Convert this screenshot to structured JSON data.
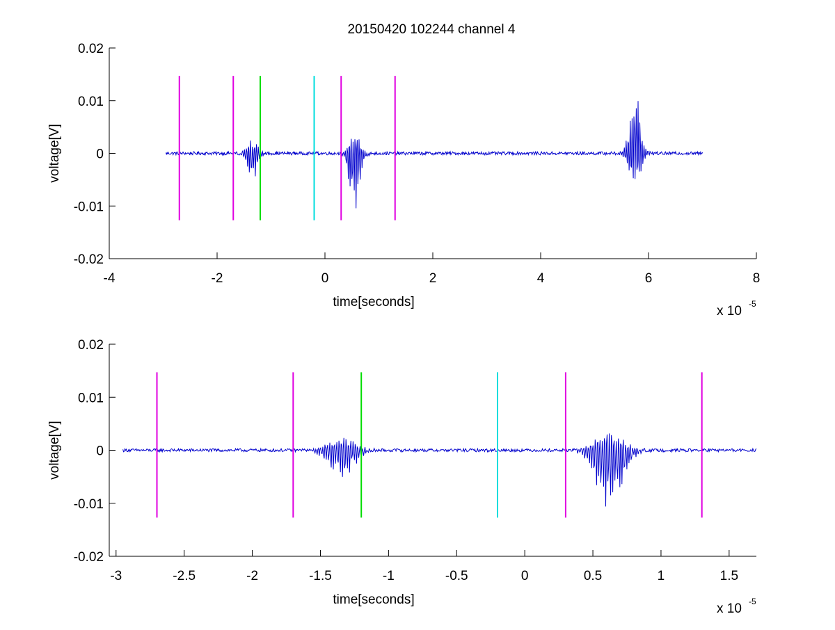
{
  "figure_title": "20150420 102244 channel 4",
  "chart_data": [
    {
      "type": "line",
      "title": "20150420 102244 channel 4",
      "xlabel": "time[seconds]",
      "ylabel": "voltage[V]",
      "x_multiplier_label": "x 10",
      "x_multiplier_exponent": "-5",
      "xlim": [
        -4,
        8
      ],
      "ylim": [
        -0.02,
        0.02
      ],
      "xticks": [
        -4,
        -2,
        0,
        2,
        4,
        6,
        8
      ],
      "xtick_labels": [
        "-4",
        "-2",
        "0",
        "2",
        "4",
        "6",
        "8"
      ],
      "yticks": [
        -0.02,
        -0.01,
        0,
        0.01,
        0.02
      ],
      "ytick_labels": [
        "-0.02",
        "-0.01",
        "0",
        "0.01",
        "0.02"
      ],
      "grid": false,
      "series": [
        {
          "color": "#0000cc",
          "x_range": [
            -2.95,
            7.0
          ],
          "baseline": 0.0,
          "noise_amplitude": 0.0003,
          "bursts": [
            {
              "x": -1.35,
              "min": -0.0055,
              "max": 0.0025,
              "width": 0.3
            },
            {
              "x": 0.55,
              "min": -0.0115,
              "max": 0.004,
              "width": 0.3
            },
            {
              "x": 5.75,
              "min": -0.0085,
              "max": 0.0135,
              "width": 0.3
            }
          ]
        }
      ],
      "markers": [
        {
          "x": -2.7,
          "color": "#e000e0"
        },
        {
          "x": -1.7,
          "color": "#e000e0"
        },
        {
          "x": -1.2,
          "color": "#00dd00"
        },
        {
          "x": -0.2,
          "color": "#00dddd"
        },
        {
          "x": 0.3,
          "color": "#e000e0"
        },
        {
          "x": 1.3,
          "color": "#e000e0"
        }
      ],
      "marker_range": [
        -0.0127,
        0.0147
      ]
    },
    {
      "type": "line",
      "title": "",
      "xlabel": "time[seconds]",
      "ylabel": "voltage[V]",
      "x_multiplier_label": "x 10",
      "x_multiplier_exponent": "-5",
      "xlim": [
        -3.05,
        1.7
      ],
      "ylim": [
        -0.02,
        0.02
      ],
      "xticks": [
        -3,
        -2.5,
        -2,
        -1.5,
        -1,
        -0.5,
        0,
        0.5,
        1,
        1.5
      ],
      "xtick_labels": [
        "-3",
        "-2.5",
        "-2",
        "-1.5",
        "-1",
        "-0.5",
        "0",
        "0.5",
        "1",
        "1.5"
      ],
      "yticks": [
        -0.02,
        -0.01,
        0,
        0.01,
        0.02
      ],
      "ytick_labels": [
        "-0.02",
        "-0.01",
        "0",
        "0.01",
        "0.02"
      ],
      "grid": false,
      "series": [
        {
          "color": "#0000cc",
          "x_range": [
            -2.95,
            1.7
          ],
          "baseline": 0.0,
          "noise_amplitude": 0.0003,
          "bursts": [
            {
              "x": -1.35,
              "min": -0.0055,
              "max": 0.0025,
              "width": 0.3
            },
            {
              "x": 0.62,
              "min": -0.0115,
              "max": 0.004,
              "width": 0.3
            }
          ]
        }
      ],
      "markers": [
        {
          "x": -2.7,
          "color": "#e000e0"
        },
        {
          "x": -1.7,
          "color": "#e000e0"
        },
        {
          "x": -1.2,
          "color": "#00dd00"
        },
        {
          "x": -0.2,
          "color": "#00dddd"
        },
        {
          "x": 0.3,
          "color": "#e000e0"
        },
        {
          "x": 1.3,
          "color": "#e000e0"
        }
      ],
      "marker_range": [
        -0.0127,
        0.0147
      ]
    }
  ]
}
